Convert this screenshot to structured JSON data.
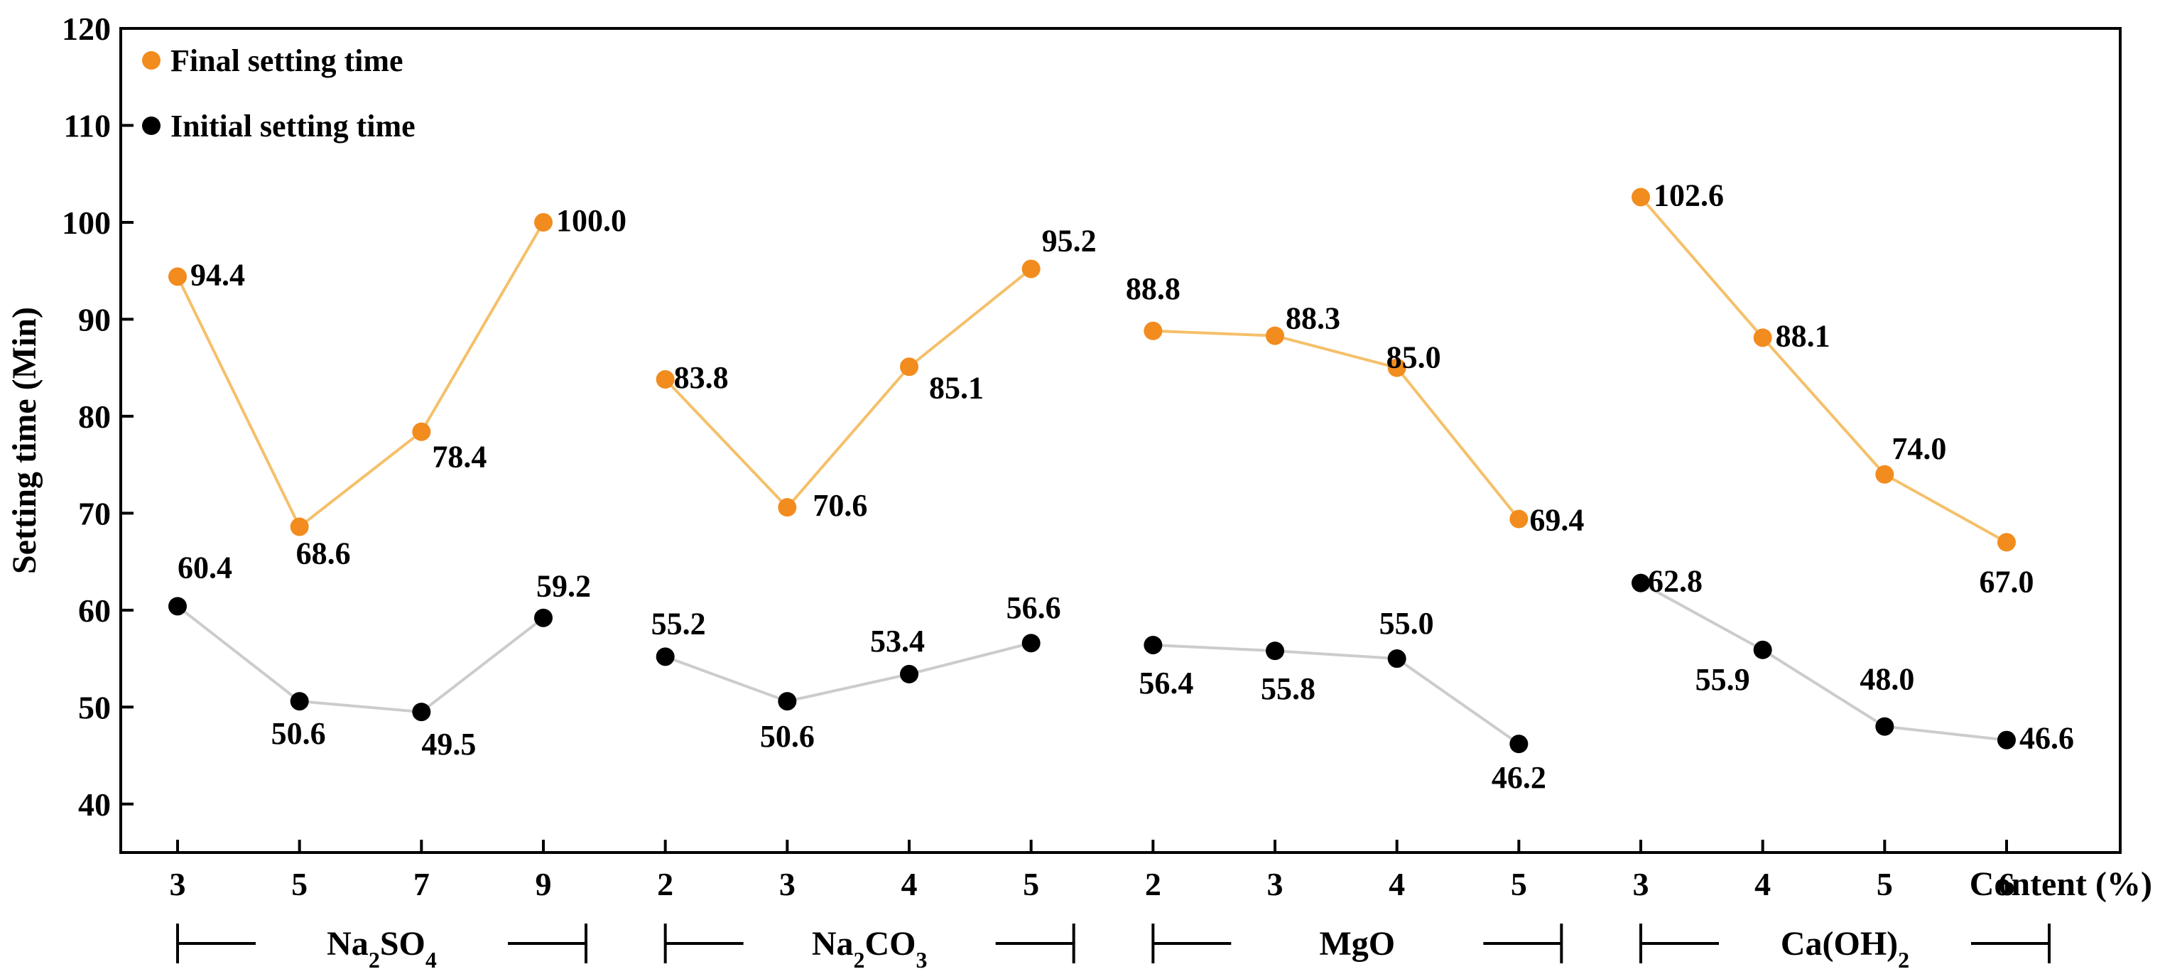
{
  "chart_data": {
    "type": "line",
    "ylabel": "Setting time (Min)",
    "xlabel": "Content (%)",
    "ylim": [
      35,
      120
    ],
    "yticks": [
      40,
      50,
      60,
      70,
      80,
      90,
      100,
      110,
      120
    ],
    "xticks": [
      "3",
      "5",
      "7",
      "9",
      "2",
      "3",
      "4",
      "5",
      "2",
      "3",
      "4",
      "5",
      "3",
      "4",
      "5",
      "6"
    ],
    "legend": {
      "placement": "top-left"
    },
    "colors": {
      "final": "#f28c1e",
      "final_line": "#f5c06a",
      "initial": "#000000",
      "initial_line": "#cccccc"
    },
    "groups": [
      {
        "label_html": "Na<tspan baseline-shift=\"sub\" font-size=\"32\">2</tspan>SO<tspan baseline-shift=\"sub\" font-size=\"32\">4</tspan>",
        "label_text": "Na2SO4",
        "x": [
          "3",
          "5",
          "7",
          "9"
        ],
        "final": [
          94.4,
          68.6,
          78.4,
          100.0
        ],
        "final_labels": [
          "94.4",
          "68.6",
          "78.4",
          "100.0"
        ],
        "initial": [
          60.4,
          50.6,
          49.5,
          59.2
        ],
        "initial_labels": [
          "60.4",
          "50.6",
          "49.5",
          "59.2"
        ]
      },
      {
        "label_html": "Na<tspan baseline-shift=\"sub\" font-size=\"32\">2</tspan>CO<tspan baseline-shift=\"sub\" font-size=\"32\">3</tspan>",
        "label_text": "Na2CO3",
        "x": [
          "2",
          "3",
          "4",
          "5"
        ],
        "final": [
          83.8,
          70.6,
          85.1,
          95.2
        ],
        "final_labels": [
          "83.8",
          "70.6",
          "85.1",
          "95.2"
        ],
        "initial": [
          55.2,
          50.6,
          53.4,
          56.6
        ],
        "initial_labels": [
          "55.2",
          "50.6",
          "53.4",
          "56.6"
        ]
      },
      {
        "label_html": "MgO",
        "label_text": "MgO",
        "x": [
          "2",
          "3",
          "4",
          "5"
        ],
        "final": [
          88.8,
          88.3,
          85.0,
          69.4
        ],
        "final_labels": [
          "88.8",
          "88.3",
          "85.0",
          "69.4"
        ],
        "initial": [
          56.4,
          55.8,
          55.0,
          46.2
        ],
        "initial_labels": [
          "56.4",
          "55.8",
          "55.0",
          "46.2"
        ]
      },
      {
        "label_html": "Ca(OH)<tspan baseline-shift=\"sub\" font-size=\"32\">2</tspan>",
        "label_text": "Ca(OH)2",
        "x": [
          "3",
          "4",
          "5",
          "6"
        ],
        "final": [
          102.6,
          88.1,
          74.0,
          67.0
        ],
        "final_labels": [
          "102.6",
          "88.1",
          "74.0",
          "67.0"
        ],
        "initial": [
          62.8,
          55.9,
          48.0,
          46.6
        ],
        "initial_labels": [
          "62.8",
          "55.9",
          "48.0",
          "46.6"
        ]
      }
    ],
    "series": [
      {
        "name": "Final setting time",
        "key": "final"
      },
      {
        "name": "Initial setting time",
        "key": "initial"
      }
    ]
  }
}
